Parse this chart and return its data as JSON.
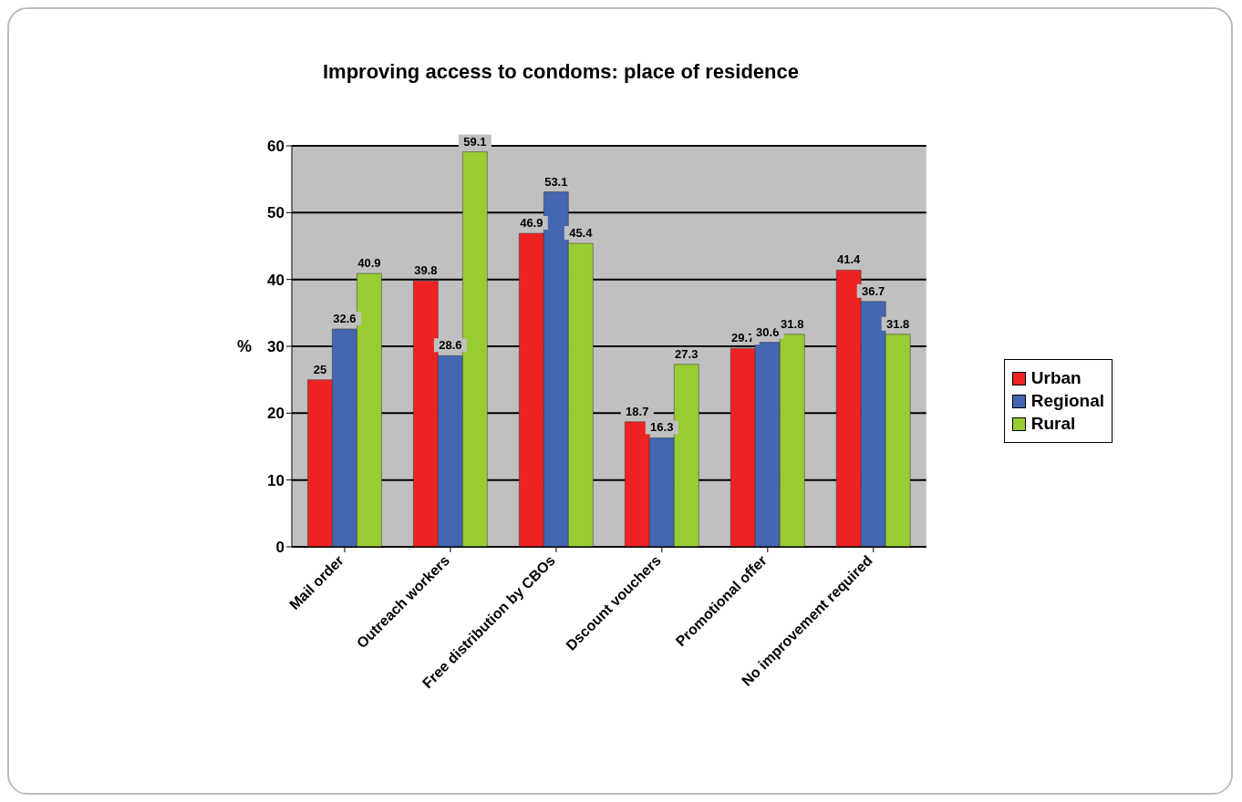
{
  "chart_data": {
    "type": "bar",
    "title": "Improving access to condoms: place of residence",
    "ylabel": "%",
    "categories": [
      "Mail order",
      "Outreach workers",
      "Free distribution by CBOs",
      "Dscount vouchers",
      "Promotional offer",
      "No improvement required"
    ],
    "series": [
      {
        "name": "Urban",
        "color": "#ee2222",
        "values": [
          25,
          39.8,
          46.9,
          18.7,
          29.7,
          41.4
        ]
      },
      {
        "name": "Regional",
        "color": "#4466b0",
        "values": [
          32.6,
          28.6,
          53.1,
          16.3,
          30.6,
          36.7
        ]
      },
      {
        "name": "Rural",
        "color": "#99cc33",
        "values": [
          40.9,
          59.1,
          45.4,
          27.3,
          31.8,
          31.8
        ]
      }
    ],
    "ylim": [
      0,
      60
    ],
    "yticks": [
      0,
      10,
      20,
      30,
      40,
      50,
      60
    ],
    "grid": "y",
    "legend": "right",
    "data_labels": true
  }
}
